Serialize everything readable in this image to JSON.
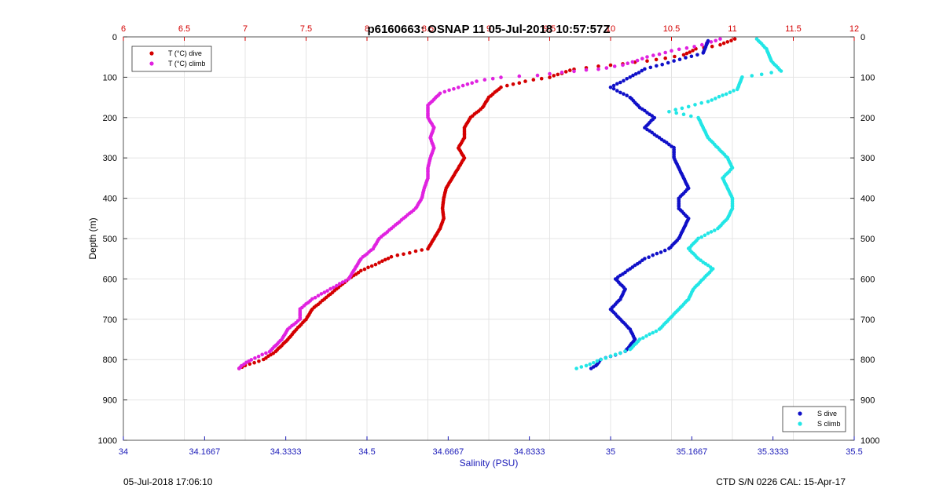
{
  "chart_data": {
    "type": "scatter",
    "title": "p6160663: OSNAP 11 05-Jul-2018 10:57:57Z",
    "ylabel": "Depth (m)",
    "xlabel_bottom": "Salinity (PSU)",
    "ylim": [
      0,
      1000
    ],
    "y_reversed": true,
    "y_ticks": [
      0,
      100,
      200,
      300,
      400,
      500,
      600,
      700,
      800,
      900,
      1000
    ],
    "x_top": {
      "range": [
        6,
        12
      ],
      "ticks": [
        6,
        6.5,
        7,
        7.5,
        8,
        8.5,
        9,
        9.5,
        10,
        10.5,
        11,
        11.5,
        12
      ],
      "tick_labels": [
        "6",
        "6.5",
        "7",
        "7.5",
        "8",
        "8.5",
        "9",
        "9.5",
        "10",
        "10.5",
        "11",
        "11.5",
        "12"
      ],
      "color": "#d40000"
    },
    "x_bottom": {
      "range": [
        34,
        35.5
      ],
      "ticks": [
        34,
        34.1667,
        34.3333,
        34.5,
        34.6667,
        34.8333,
        35,
        35.1667,
        35.3333,
        35.5
      ],
      "tick_labels": [
        "34",
        "34.1667",
        "34.3333",
        "34.5",
        "34.6667",
        "34.8333",
        "35",
        "35.1667",
        "35.3333",
        "35.5"
      ],
      "color": "#1a1ab8"
    },
    "grid": true,
    "legend_top_left": [
      "T (°C) dive",
      "T (°C) climb"
    ],
    "legend_bottom_right": [
      "S dive",
      "S climb"
    ],
    "series": [
      {
        "name": "T (°C) dive",
        "axis": "top",
        "color": "#d40000",
        "points": [
          [
            11.02,
            5
          ],
          [
            10.9,
            20
          ],
          [
            10.7,
            30
          ],
          [
            10.6,
            45
          ],
          [
            10.3,
            60
          ],
          [
            10.0,
            70
          ],
          [
            9.7,
            80
          ],
          [
            9.6,
            90
          ],
          [
            9.5,
            100
          ],
          [
            9.3,
            110
          ],
          [
            9.1,
            125
          ],
          [
            9.0,
            150
          ],
          [
            8.95,
            175
          ],
          [
            8.85,
            200
          ],
          [
            8.8,
            225
          ],
          [
            8.8,
            250
          ],
          [
            8.75,
            275
          ],
          [
            8.8,
            300
          ],
          [
            8.75,
            325
          ],
          [
            8.7,
            350
          ],
          [
            8.65,
            375
          ],
          [
            8.63,
            400
          ],
          [
            8.62,
            425
          ],
          [
            8.63,
            450
          ],
          [
            8.6,
            475
          ],
          [
            8.55,
            500
          ],
          [
            8.5,
            525
          ],
          [
            8.35,
            535
          ],
          [
            8.2,
            545
          ],
          [
            8.1,
            560
          ],
          [
            7.95,
            580
          ],
          [
            7.85,
            600
          ],
          [
            7.75,
            625
          ],
          [
            7.65,
            650
          ],
          [
            7.55,
            675
          ],
          [
            7.5,
            700
          ],
          [
            7.42,
            725
          ],
          [
            7.35,
            750
          ],
          [
            7.25,
            780
          ],
          [
            7.15,
            800
          ],
          [
            7.0,
            815
          ],
          [
            6.95,
            822
          ]
        ]
      },
      {
        "name": "T (°C) climb",
        "axis": "top",
        "color": "#e022e0",
        "points": [
          [
            10.9,
            5
          ],
          [
            10.75,
            20
          ],
          [
            10.5,
            35
          ],
          [
            10.3,
            50
          ],
          [
            10.1,
            70
          ],
          [
            9.9,
            80
          ],
          [
            9.7,
            85
          ],
          [
            9.4,
            95
          ],
          [
            9.1,
            100
          ],
          [
            8.9,
            110
          ],
          [
            8.6,
            140
          ],
          [
            8.5,
            170
          ],
          [
            8.5,
            200
          ],
          [
            8.55,
            225
          ],
          [
            8.52,
            250
          ],
          [
            8.55,
            275
          ],
          [
            8.52,
            300
          ],
          [
            8.5,
            325
          ],
          [
            8.5,
            350
          ],
          [
            8.47,
            375
          ],
          [
            8.45,
            400
          ],
          [
            8.4,
            425
          ],
          [
            8.3,
            450
          ],
          [
            8.2,
            475
          ],
          [
            8.1,
            500
          ],
          [
            8.05,
            525
          ],
          [
            7.95,
            550
          ],
          [
            7.9,
            575
          ],
          [
            7.85,
            600
          ],
          [
            7.7,
            625
          ],
          [
            7.55,
            650
          ],
          [
            7.45,
            675
          ],
          [
            7.45,
            700
          ],
          [
            7.35,
            725
          ],
          [
            7.3,
            750
          ],
          [
            7.2,
            780
          ],
          [
            7.05,
            800
          ],
          [
            6.97,
            815
          ],
          [
            6.95,
            822
          ]
        ]
      },
      {
        "name": "S dive",
        "axis": "bottom",
        "color": "#1010c8",
        "points": [
          [
            35.2,
            10
          ],
          [
            35.19,
            40
          ],
          [
            35.13,
            60
          ],
          [
            35.07,
            80
          ],
          [
            35.04,
            100
          ],
          [
            35.0,
            125
          ],
          [
            35.04,
            150
          ],
          [
            35.06,
            175
          ],
          [
            35.09,
            200
          ],
          [
            35.07,
            225
          ],
          [
            35.1,
            250
          ],
          [
            35.13,
            275
          ],
          [
            35.13,
            300
          ],
          [
            35.14,
            325
          ],
          [
            35.15,
            350
          ],
          [
            35.16,
            375
          ],
          [
            35.14,
            400
          ],
          [
            35.14,
            425
          ],
          [
            35.16,
            450
          ],
          [
            35.15,
            475
          ],
          [
            35.14,
            500
          ],
          [
            35.12,
            525
          ],
          [
            35.07,
            550
          ],
          [
            35.04,
            575
          ],
          [
            35.01,
            600
          ],
          [
            35.03,
            625
          ],
          [
            35.02,
            650
          ],
          [
            35.0,
            675
          ],
          [
            35.02,
            700
          ],
          [
            35.04,
            725
          ],
          [
            35.05,
            750
          ],
          [
            35.03,
            780
          ],
          [
            34.98,
            800
          ],
          [
            34.97,
            815
          ],
          [
            34.96,
            822
          ]
        ]
      },
      {
        "name": "S climb",
        "axis": "bottom",
        "color": "#22e6e6",
        "points": [
          [
            35.3,
            5
          ],
          [
            35.32,
            30
          ],
          [
            35.33,
            60
          ],
          [
            35.35,
            85
          ],
          [
            35.27,
            100
          ],
          [
            35.26,
            130
          ],
          [
            35.2,
            160
          ],
          [
            35.12,
            185
          ],
          [
            35.18,
            200
          ],
          [
            35.19,
            225
          ],
          [
            35.2,
            250
          ],
          [
            35.22,
            275
          ],
          [
            35.24,
            300
          ],
          [
            35.25,
            325
          ],
          [
            35.23,
            350
          ],
          [
            35.24,
            375
          ],
          [
            35.25,
            400
          ],
          [
            35.25,
            425
          ],
          [
            35.24,
            450
          ],
          [
            35.22,
            475
          ],
          [
            35.18,
            500
          ],
          [
            35.16,
            525
          ],
          [
            35.18,
            550
          ],
          [
            35.21,
            575
          ],
          [
            35.19,
            600
          ],
          [
            35.17,
            625
          ],
          [
            35.16,
            650
          ],
          [
            35.14,
            675
          ],
          [
            35.12,
            700
          ],
          [
            35.1,
            725
          ],
          [
            35.06,
            750
          ],
          [
            35.04,
            775
          ],
          [
            34.98,
            800
          ],
          [
            34.95,
            815
          ],
          [
            34.93,
            822
          ]
        ]
      }
    ]
  },
  "footer": {
    "left": "05-Jul-2018 17:06:10",
    "right": "CTD S/N 0226  CAL: 15-Apr-17"
  }
}
